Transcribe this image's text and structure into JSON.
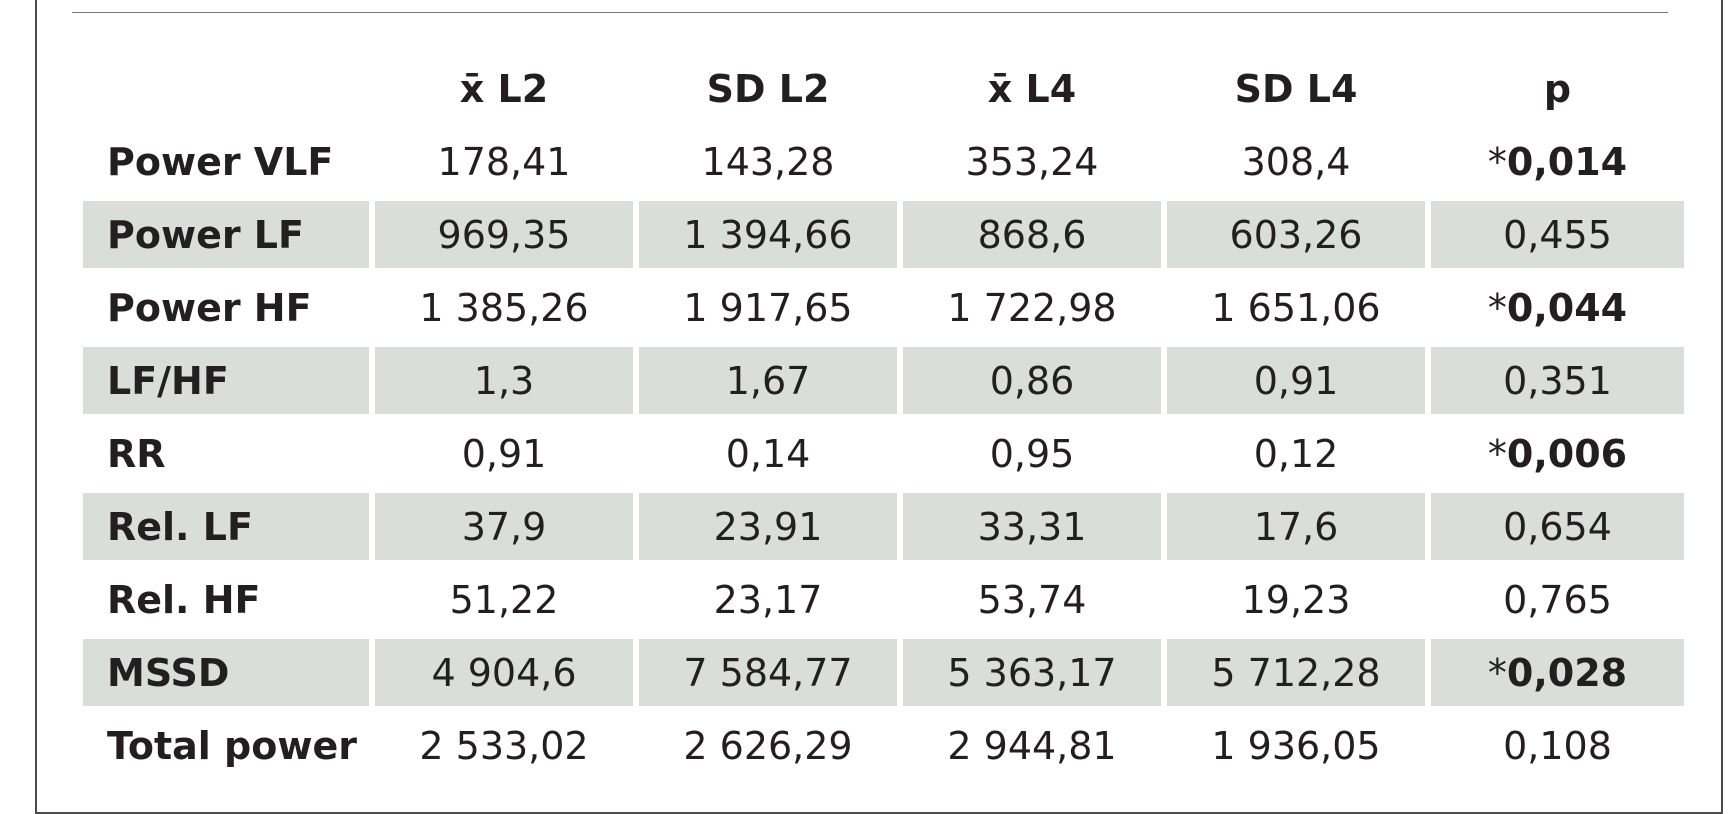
{
  "table": {
    "columns": [
      "x̄ L2",
      "SD L2",
      "x̄ L4",
      "SD L4",
      "p"
    ],
    "rows": [
      {
        "label": "Power VLF",
        "values": [
          "178,41",
          "143,28",
          "353,24",
          "308,4"
        ],
        "p_star": "*",
        "p": "0,014",
        "significant": true,
        "shaded": false
      },
      {
        "label": "Power LF",
        "values": [
          "969,35",
          "1 394,66",
          "868,6",
          "603,26"
        ],
        "p_star": "",
        "p": "0,455",
        "significant": false,
        "shaded": true
      },
      {
        "label": "Power HF",
        "values": [
          "1 385,26",
          "1 917,65",
          "1 722,98",
          "1 651,06"
        ],
        "p_star": "*",
        "p": "0,044",
        "significant": true,
        "shaded": false
      },
      {
        "label": "LF/HF",
        "values": [
          "1,3",
          "1,67",
          "0,86",
          "0,91"
        ],
        "p_star": "",
        "p": "0,351",
        "significant": false,
        "shaded": true
      },
      {
        "label": "RR",
        "values": [
          "0,91",
          "0,14",
          "0,95",
          "0,12"
        ],
        "p_star": "*",
        "p": "0,006",
        "significant": true,
        "shaded": false
      },
      {
        "label": "Rel. LF",
        "values": [
          "37,9",
          "23,91",
          "33,31",
          "17,6"
        ],
        "p_star": "",
        "p": "0,654",
        "significant": false,
        "shaded": true
      },
      {
        "label": "Rel. HF",
        "values": [
          "51,22",
          "23,17",
          "53,74",
          "19,23"
        ],
        "p_star": "",
        "p": "0,765",
        "significant": false,
        "shaded": false
      },
      {
        "label": "MSSD",
        "values": [
          "4 904,6",
          "7 584,77",
          "5 363,17",
          "5 712,28"
        ],
        "p_star": "*",
        "p": "0,028",
        "significant": true,
        "shaded": true
      },
      {
        "label": "Total power",
        "values": [
          "2 533,02",
          "2 626,29",
          "2 944,81",
          "1 936,05"
        ],
        "p_star": "",
        "p": "0,108",
        "significant": false,
        "shaded": false
      }
    ]
  },
  "colors": {
    "row_shade": "#d9dedb",
    "text": "#231f20",
    "frame": "#4a4a4a"
  }
}
